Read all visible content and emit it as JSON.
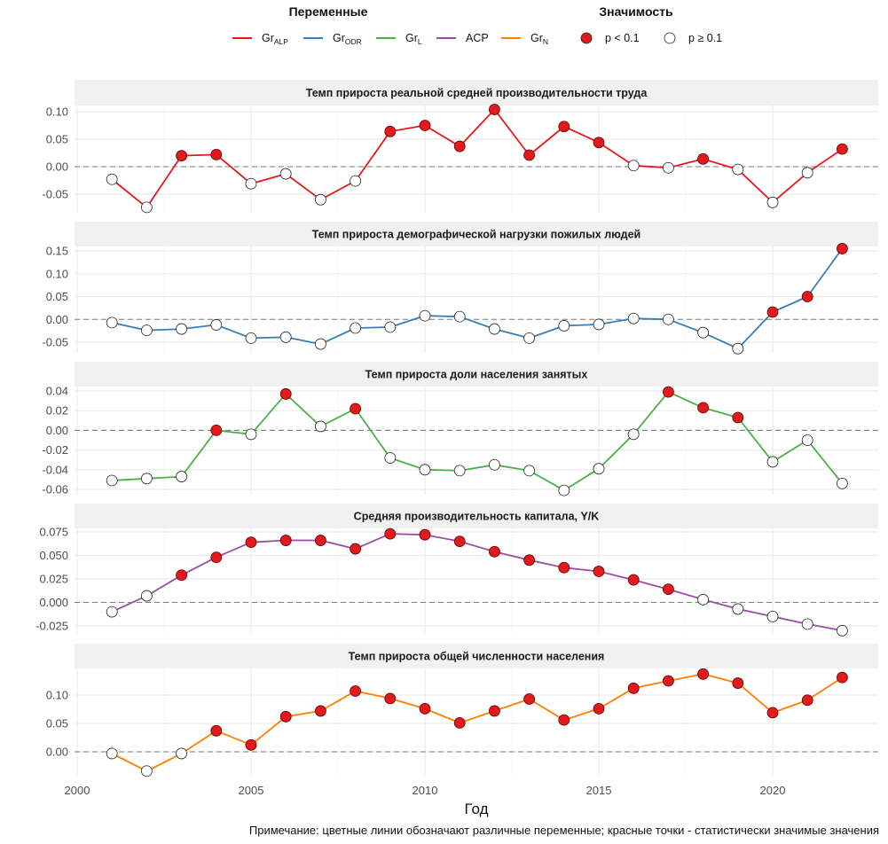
{
  "chart_data": {
    "type": "line",
    "layout": "faceted-vertical",
    "xlabel": "Год",
    "ylabel": "",
    "x_ticks": [
      2000,
      2005,
      2010,
      2015,
      2020
    ],
    "xlim": [
      2000,
      2022.8
    ],
    "x": [
      2001,
      2002,
      2003,
      2004,
      2005,
      2006,
      2007,
      2008,
      2009,
      2010,
      2011,
      2012,
      2013,
      2014,
      2015,
      2016,
      2017,
      2018,
      2019,
      2020,
      2021,
      2022
    ],
    "grid": true,
    "reference_line": {
      "y": 0,
      "style": "dashed"
    },
    "legend": {
      "placement": "top",
      "variables_title": "Переменные",
      "significance_title": "Значимость",
      "variables": [
        {
          "base": "Gr",
          "sub": "ALP",
          "color": "#e31a1c"
        },
        {
          "base": "Gr",
          "sub": "ODR",
          "color": "#377eb8"
        },
        {
          "base": "Gr",
          "sub": "L",
          "color": "#4daf4a"
        },
        {
          "base": "ACP",
          "sub": "",
          "color": "#984ea3"
        },
        {
          "base": "Gr",
          "sub": "N",
          "color": "#ff7f00"
        }
      ],
      "significance": [
        {
          "label": "p < 0.1",
          "fill": "#e31a1c"
        },
        {
          "label": "p ≥ 0.1",
          "fill": "#ffffff"
        }
      ]
    },
    "panels": [
      {
        "title": "Темп прироста реальной средней производительности труда",
        "variable": "GrALP",
        "color": "#e31a1c",
        "ylim": [
          -0.08,
          0.115
        ],
        "y_ticks": [
          -0.05,
          0.0,
          0.05,
          0.1
        ],
        "y_tick_labels": [
          "-0.05",
          "0.00",
          "0.05",
          "0.10"
        ],
        "values": [
          -0.023,
          -0.074,
          0.02,
          0.022,
          -0.031,
          -0.013,
          -0.06,
          -0.026,
          0.064,
          0.075,
          0.037,
          0.104,
          0.021,
          0.073,
          0.044,
          0.002,
          -0.002,
          0.014,
          -0.005,
          -0.065,
          -0.011,
          0.032
        ],
        "significant": [
          false,
          false,
          true,
          true,
          false,
          false,
          false,
          false,
          true,
          true,
          true,
          true,
          true,
          true,
          true,
          false,
          false,
          true,
          false,
          false,
          false,
          true
        ]
      },
      {
        "title": "Темп прироста демографической нагрузки пожилых людей",
        "variable": "GrODR",
        "color": "#377eb8",
        "ylim": [
          -0.07,
          0.17
        ],
        "y_ticks": [
          -0.05,
          0.0,
          0.05,
          0.1,
          0.15
        ],
        "y_tick_labels": [
          "-0.05",
          "0.00",
          "0.05",
          "0.10",
          "0.15"
        ],
        "values": [
          -0.007,
          -0.024,
          -0.021,
          -0.012,
          -0.041,
          -0.039,
          -0.054,
          -0.019,
          -0.017,
          0.008,
          0.006,
          -0.021,
          -0.041,
          -0.014,
          -0.011,
          0.002,
          0.0,
          -0.029,
          -0.064,
          0.016,
          0.05,
          0.155
        ],
        "significant": [
          false,
          false,
          false,
          false,
          false,
          false,
          false,
          false,
          false,
          false,
          false,
          false,
          false,
          false,
          false,
          false,
          false,
          false,
          false,
          true,
          true,
          true
        ]
      },
      {
        "title": "Темп прироста доли населения занятых",
        "variable": "GrL",
        "color": "#4daf4a",
        "ylim": [
          -0.062,
          0.045
        ],
        "y_ticks": [
          -0.06,
          -0.04,
          -0.02,
          0.0,
          0.02,
          0.04
        ],
        "y_tick_labels": [
          "-0.06",
          "-0.04",
          "-0.02",
          "0.00",
          "0.02",
          "0.04"
        ],
        "values": [
          -0.051,
          -0.049,
          -0.047,
          0.0,
          -0.004,
          0.037,
          0.004,
          0.022,
          -0.028,
          -0.04,
          -0.041,
          -0.035,
          -0.041,
          -0.061,
          -0.039,
          -0.004,
          0.039,
          0.023,
          0.013,
          -0.032,
          -0.01,
          -0.054
        ],
        "significant": [
          false,
          false,
          false,
          true,
          false,
          true,
          false,
          true,
          false,
          false,
          false,
          false,
          false,
          false,
          false,
          false,
          true,
          true,
          true,
          false,
          false,
          false
        ]
      },
      {
        "title": "Средняя производительность капитала, Y/K",
        "variable": "ACP",
        "color": "#984ea3",
        "ylim": [
          -0.034,
          0.08
        ],
        "y_ticks": [
          -0.025,
          0.0,
          0.025,
          0.05,
          0.075
        ],
        "y_tick_labels": [
          "-0.025",
          "0.000",
          "0.025",
          "0.050",
          "0.075"
        ],
        "values": [
          -0.01,
          0.007,
          0.029,
          0.048,
          0.064,
          0.066,
          0.066,
          0.057,
          0.073,
          0.072,
          0.065,
          0.054,
          0.045,
          0.037,
          0.033,
          0.024,
          0.014,
          0.003,
          -0.007,
          -0.015,
          -0.023,
          -0.03
        ],
        "significant": [
          false,
          false,
          true,
          true,
          true,
          true,
          true,
          true,
          true,
          true,
          true,
          true,
          true,
          true,
          true,
          true,
          true,
          false,
          false,
          false,
          false,
          false
        ]
      },
      {
        "title": "Темп прироста общей численности населения",
        "variable": "GrN",
        "color": "#ff7f00",
        "ylim": [
          -0.04,
          0.145
        ],
        "y_ticks": [
          0.0,
          0.05,
          0.1
        ],
        "y_tick_labels": [
          "0.00",
          "0.05",
          "0.10"
        ],
        "values": [
          -0.003,
          -0.034,
          -0.003,
          0.037,
          0.012,
          0.062,
          0.072,
          0.107,
          0.094,
          0.076,
          0.051,
          0.072,
          0.093,
          0.056,
          0.076,
          0.112,
          0.125,
          0.137,
          0.121,
          0.069,
          0.091,
          0.131
        ],
        "significant": [
          false,
          false,
          false,
          true,
          true,
          true,
          true,
          true,
          true,
          true,
          true,
          true,
          true,
          true,
          true,
          true,
          true,
          true,
          true,
          true,
          true,
          true
        ]
      }
    ],
    "note": "Примечание: цветные линии обозначают различные переменные; красные точки - статистически значимые значения"
  },
  "colors": {
    "significant_fill": "#e31a1c",
    "insignificant_fill": "#ffffff",
    "strip_background": "#f0f0f0",
    "grid": "#ebebeb",
    "zero_line": "#7f7f7f"
  }
}
